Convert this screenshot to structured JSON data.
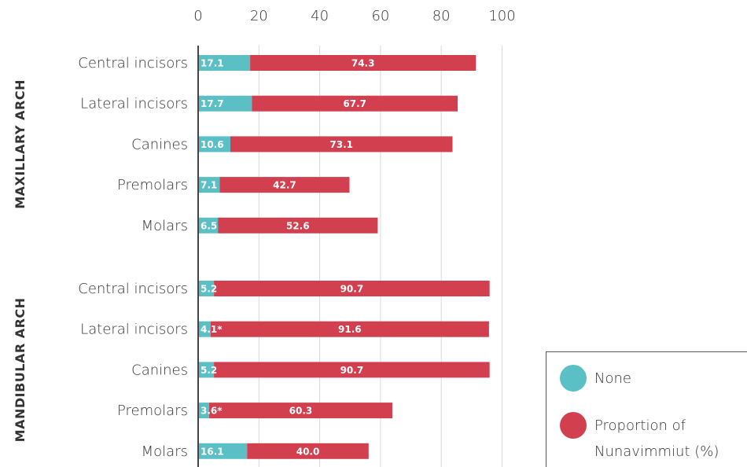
{
  "chart_data": {
    "type": "bar",
    "orientation": "horizontal",
    "stacked": true,
    "xlim": [
      0,
      100
    ],
    "xticks": [
      "0",
      "20",
      "40",
      "60",
      "80",
      "100"
    ],
    "grid": true,
    "colors": {
      "none": "#5bc0c6",
      "proportion": "#d24050"
    },
    "groups": [
      {
        "name": "MAXILLARY ARCH",
        "rows": [
          {
            "category": "Central incisors",
            "none": 17.1,
            "none_label": "17.1",
            "proportion": 74.3,
            "proportion_label": "74.3"
          },
          {
            "category": "Lateral incisors",
            "none": 17.7,
            "none_label": "17.7",
            "proportion": 67.7,
            "proportion_label": "67.7"
          },
          {
            "category": "Canines",
            "none": 10.6,
            "none_label": "10.6",
            "proportion": 73.1,
            "proportion_label": "73.1"
          },
          {
            "category": "Premolars",
            "none": 7.1,
            "none_label": "7.1",
            "proportion": 42.7,
            "proportion_label": "42.7"
          },
          {
            "category": "Molars",
            "none": 6.5,
            "none_label": "6.5",
            "proportion": 52.6,
            "proportion_label": "52.6"
          }
        ]
      },
      {
        "name": "MANDIBULAR ARCH",
        "rows": [
          {
            "category": "Central incisors",
            "none": 5.2,
            "none_label": "5.2",
            "proportion": 90.7,
            "proportion_label": "90.7"
          },
          {
            "category": "Lateral incisors",
            "none": 4.1,
            "none_label": "4.1*",
            "proportion": 91.6,
            "proportion_label": "91.6"
          },
          {
            "category": "Canines",
            "none": 5.2,
            "none_label": "5.2",
            "proportion": 90.7,
            "proportion_label": "90.7"
          },
          {
            "category": "Premolars",
            "none": 3.6,
            "none_label": "3.6*",
            "proportion": 60.3,
            "proportion_label": "60.3"
          },
          {
            "category": "Molars",
            "none": 16.1,
            "none_label": "16.1",
            "proportion": 40.0,
            "proportion_label": "40.0"
          }
        ]
      }
    ],
    "legend": {
      "placement": "bottom-right",
      "items": [
        {
          "key": "none",
          "label_lines": [
            "None"
          ]
        },
        {
          "key": "proportion",
          "label_lines": [
            "Proportion of",
            "Nunavimmiut (%)"
          ]
        }
      ]
    }
  }
}
